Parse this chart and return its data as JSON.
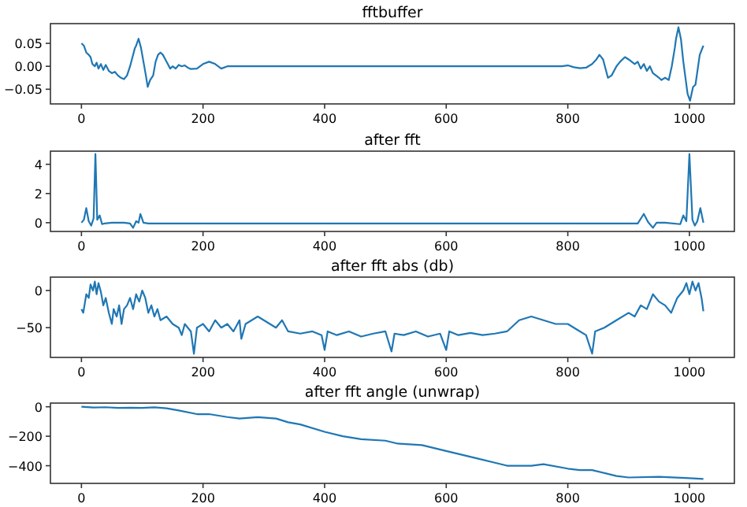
{
  "chart_data": [
    {
      "type": "line",
      "title": "fftbuffer",
      "xlim": [
        -51,
        1074
      ],
      "xticks": [
        0,
        200,
        400,
        600,
        800,
        1000
      ],
      "ylim": [
        -0.082,
        0.093
      ],
      "yticks": [
        {
          "value": -0.05,
          "label": "−0.05"
        },
        {
          "value": 0,
          "label": "0.00"
        },
        {
          "value": 0.05,
          "label": "0.05"
        }
      ],
      "series": [
        {
          "color": "#1f77b4",
          "x": [
            0,
            4,
            8,
            12,
            15,
            18,
            22,
            25,
            28,
            32,
            36,
            40,
            45,
            50,
            55,
            60,
            65,
            70,
            75,
            80,
            84,
            88,
            90,
            94,
            98,
            102,
            106,
            109,
            113,
            118,
            122,
            126,
            130,
            134,
            138,
            142,
            146,
            150,
            155,
            160,
            165,
            170,
            175,
            180,
            190,
            200,
            210,
            220,
            230,
            240,
            250,
            260,
            790,
            800,
            810,
            820,
            830,
            840,
            847,
            852,
            858,
            866,
            872,
            880,
            886,
            894,
            900,
            905,
            910,
            915,
            920,
            925,
            930,
            935,
            940,
            945,
            950,
            954,
            960,
            966,
            971,
            976,
            978,
            982,
            986,
            990,
            997,
            1001,
            1006,
            1010,
            1017,
            1023
          ],
          "values": [
            0.05,
            0.045,
            0.03,
            0.025,
            0.02,
            0.005,
            0.0,
            0.008,
            -0.005,
            0.005,
            -0.008,
            0.003,
            -0.01,
            -0.015,
            -0.012,
            -0.02,
            -0.025,
            -0.028,
            -0.02,
            0.0,
            0.02,
            0.04,
            0.045,
            0.06,
            0.04,
            0.01,
            -0.02,
            -0.045,
            -0.03,
            -0.02,
            0.01,
            0.025,
            0.03,
            0.025,
            0.015,
            0.005,
            -0.005,
            0.0,
            -0.005,
            0.003,
            0.0,
            0.002,
            -0.003,
            -0.006,
            -0.005,
            0.005,
            0.01,
            0.005,
            -0.005,
            0.0,
            0.0,
            0.0,
            0.0,
            0.002,
            -0.002,
            -0.004,
            -0.003,
            0.005,
            0.015,
            0.025,
            0.015,
            -0.025,
            -0.02,
            0.0,
            0.01,
            0.02,
            0.015,
            0.01,
            0.005,
            0.01,
            -0.005,
            0.005,
            -0.01,
            0.0,
            -0.015,
            -0.02,
            -0.025,
            -0.03,
            -0.025,
            -0.03,
            0.0,
            0.04,
            0.06,
            0.085,
            0.06,
            0.01,
            -0.06,
            -0.075,
            -0.045,
            -0.04,
            0.025,
            0.045
          ]
        }
      ]
    },
    {
      "type": "line",
      "title": "after fft",
      "xlim": [
        -51,
        1074
      ],
      "xticks": [
        0,
        200,
        400,
        600,
        800,
        1000
      ],
      "ylim": [
        -0.6,
        4.9
      ],
      "yticks": [
        0,
        2,
        4
      ],
      "series": [
        {
          "color": "#1f77b4",
          "x": [
            0,
            4,
            8,
            12,
            16,
            20,
            23,
            26,
            30,
            34,
            38,
            50,
            70,
            80,
            85,
            90,
            94,
            97,
            102,
            110,
            300,
            600,
            900,
            915,
            925,
            932,
            940,
            946,
            960,
            985,
            990,
            995,
            1000,
            1005,
            1009,
            1013,
            1018,
            1023
          ],
          "values": [
            0,
            0.2,
            1.0,
            0.1,
            -0.2,
            0.3,
            4.7,
            0.2,
            0.5,
            -0.1,
            -0.05,
            0,
            0,
            -0.05,
            -0.35,
            0.1,
            0.0,
            0.6,
            0.0,
            -0.05,
            -0.05,
            -0.05,
            -0.05,
            -0.05,
            0.6,
            0.05,
            -0.35,
            0.0,
            0,
            -0.1,
            0.5,
            0.1,
            4.7,
            0.2,
            -0.2,
            0.1,
            1.0,
            0
          ]
        }
      ]
    },
    {
      "type": "line",
      "title": "after fft abs (db)",
      "xlim": [
        -51,
        1074
      ],
      "xticks": [
        0,
        200,
        400,
        600,
        800,
        1000
      ],
      "ylim": [
        -90,
        18
      ],
      "yticks": [
        {
          "value": -50,
          "label": "−50"
        },
        0
      ],
      "series": [
        {
          "color": "#1f77b4",
          "x": [
            0,
            3,
            8,
            12,
            15,
            19,
            22,
            25,
            28,
            32,
            36,
            40,
            45,
            50,
            53,
            58,
            62,
            66,
            70,
            75,
            80,
            85,
            90,
            95,
            100,
            105,
            110,
            115,
            120,
            125,
            130,
            140,
            150,
            160,
            165,
            170,
            180,
            185,
            190,
            200,
            210,
            220,
            230,
            240,
            250,
            260,
            263,
            270,
            280,
            290,
            300,
            310,
            320,
            330,
            340,
            360,
            380,
            395,
            400,
            405,
            420,
            440,
            460,
            480,
            500,
            510,
            515,
            530,
            550,
            570,
            590,
            600,
            605,
            620,
            640,
            660,
            680,
            700,
            720,
            740,
            760,
            780,
            800,
            820,
            830,
            840,
            845,
            860,
            880,
            900,
            910,
            920,
            930,
            940,
            950,
            960,
            970,
            980,
            990,
            995,
            1000,
            1005,
            1010,
            1015,
            1020,
            1023
          ],
          "values": [
            -25,
            -30,
            -5,
            -10,
            8,
            0,
            12,
            -5,
            10,
            -2,
            -20,
            -10,
            -30,
            -45,
            -25,
            -35,
            -20,
            -45,
            -25,
            -20,
            -10,
            -25,
            -5,
            -15,
            0,
            -10,
            -30,
            -20,
            -35,
            -25,
            -40,
            -35,
            -45,
            -50,
            -60,
            -45,
            -55,
            -85,
            -50,
            -45,
            -55,
            -40,
            -50,
            -45,
            -55,
            -40,
            -65,
            -45,
            -40,
            -35,
            -40,
            -45,
            -50,
            -40,
            -55,
            -58,
            -55,
            -60,
            -80,
            -55,
            -60,
            -55,
            -62,
            -58,
            -55,
            -82,
            -58,
            -60,
            -55,
            -62,
            -58,
            -80,
            -55,
            -60,
            -57,
            -60,
            -58,
            -55,
            -40,
            -35,
            -40,
            -45,
            -45,
            -55,
            -60,
            -85,
            -55,
            -50,
            -40,
            -30,
            -35,
            -20,
            -25,
            -5,
            -15,
            -20,
            -30,
            -10,
            0,
            10,
            -5,
            12,
            0,
            10,
            -10,
            -28
          ]
        }
      ]
    },
    {
      "type": "line",
      "title": "after fft angle (unwrap)",
      "xlim": [
        -51,
        1074
      ],
      "xticks": [
        0,
        200,
        400,
        600,
        800,
        1000
      ],
      "ylim": [
        -520,
        25
      ],
      "yticks": [
        {
          "value": -400,
          "label": "−400"
        },
        {
          "value": -200,
          "label": "−200"
        },
        0
      ],
      "series": [
        {
          "color": "#1f77b4",
          "x": [
            0,
            20,
            40,
            60,
            80,
            100,
            120,
            140,
            160,
            190,
            210,
            240,
            260,
            290,
            320,
            340,
            360,
            400,
            430,
            460,
            500,
            520,
            560,
            600,
            650,
            680,
            700,
            740,
            760,
            800,
            820,
            840,
            880,
            900,
            950,
            1000,
            1023
          ],
          "values": [
            0,
            -5,
            -3,
            -8,
            -6,
            -8,
            -4,
            -10,
            -25,
            -50,
            -50,
            -70,
            -80,
            -70,
            -80,
            -105,
            -120,
            -170,
            -200,
            -220,
            -230,
            -250,
            -260,
            -300,
            -350,
            -380,
            -400,
            -400,
            -390,
            -420,
            -430,
            -430,
            -470,
            -480,
            -475,
            -485,
            -490
          ]
        }
      ]
    }
  ]
}
